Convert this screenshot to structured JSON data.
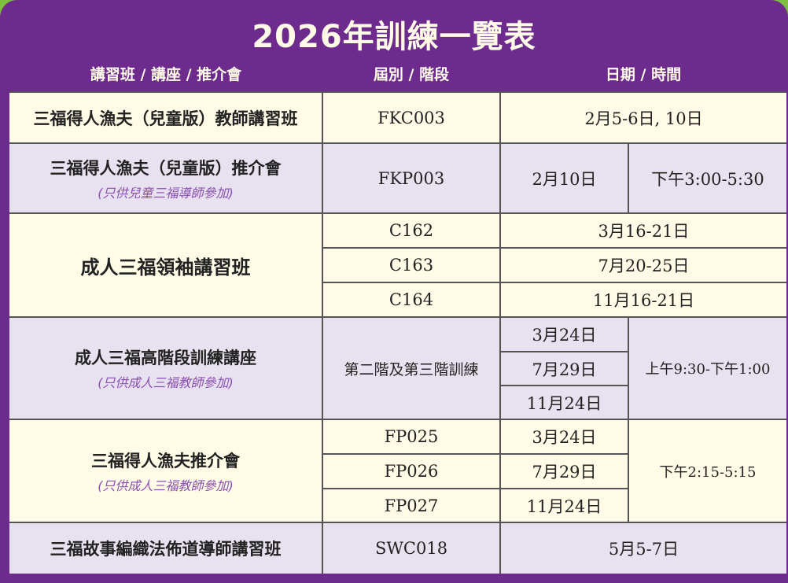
{
  "title": "2026年訓練一覽表",
  "headers": {
    "course": "講習班 / 講座 / 推介會",
    "code": "屆別 / 階段",
    "datetime": "日期 / 時間"
  },
  "colors": {
    "frame": "#6c2b8d",
    "cream": "#fffbe6",
    "lavender": "#e8e1ef",
    "note": "#8a4fb0"
  },
  "rows": [
    {
      "name": "三福得人漁夫（兒童版）教師講習班",
      "code": "FKC003",
      "date": "2月5-6日, 10日"
    },
    {
      "name": "三福得人漁夫（兒童版）推介會",
      "note": "(只供兒童三福導師參加)",
      "code": "FKP003",
      "date": "2月10日",
      "time": "下午3:00-5:30"
    },
    {
      "name": "成人三福領袖講習班",
      "sessions": [
        {
          "code": "C162",
          "date": "3月16-21日"
        },
        {
          "code": "C163",
          "date": "7月20-25日"
        },
        {
          "code": "C164",
          "date": "11月16-21日"
        }
      ]
    },
    {
      "name": "成人三福高階段訓練講座",
      "note": "(只供成人三福教師參加)",
      "code": "第二階及第三階訓練",
      "time": "上午9:30-下午1:00",
      "dates": [
        "3月24日",
        "7月29日",
        "11月24日"
      ]
    },
    {
      "name": "三福得人漁夫推介會",
      "note": "(只供成人三福教師參加)",
      "time": "下午2:15-5:15",
      "sessions": [
        {
          "code": "FP025",
          "date": "3月24日"
        },
        {
          "code": "FP026",
          "date": "7月29日"
        },
        {
          "code": "FP027",
          "date": "11月24日"
        }
      ]
    },
    {
      "name": "三福故事編織法佈道導師講習班",
      "code": "SWC018",
      "date": "5月5-7日"
    }
  ]
}
